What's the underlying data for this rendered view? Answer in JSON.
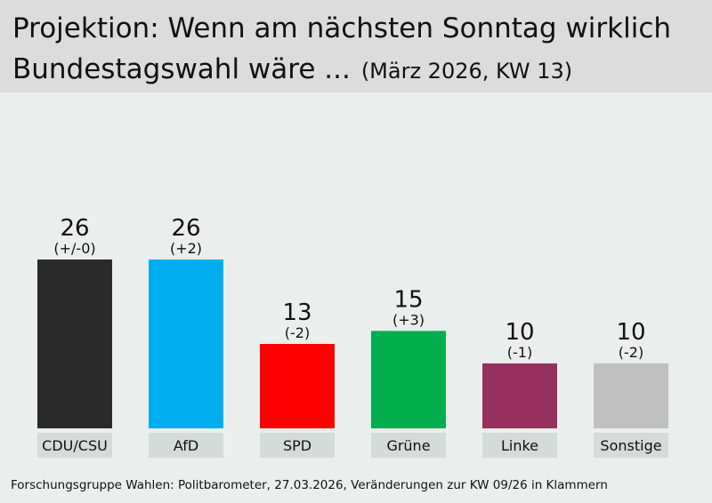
{
  "header": {
    "title_line1": "Projektion: Wenn am nächsten Sonntag wirklich",
    "title_line2": "Bundestagswahl wäre ...",
    "subtitle": "(März 2026, KW 13)"
  },
  "source": "Forschungsgruppe Wahlen: Politbarometer, 27.03.2026, Veränderungen zur KW 09/26 in Klammern",
  "chart_data": {
    "type": "bar",
    "title": "Projektion: Wenn am nächsten Sonntag wirklich Bundestagswahl wäre ...",
    "subtitle": "(März 2026, KW 13)",
    "categories": [
      "CDU/CSU",
      "AfD",
      "SPD",
      "Grüne",
      "Linke",
      "Sonstige"
    ],
    "values": [
      26,
      26,
      13,
      15,
      10,
      10
    ],
    "changes": [
      "(+/-0)",
      "(+2)",
      "(-2)",
      "(+3)",
      "(-1)",
      "(-2)"
    ],
    "colors": [
      "#2a2a2a",
      "#00aeef",
      "#fe0000",
      "#00ae4e",
      "#96315f",
      "#c0c0c0"
    ],
    "label_background": "#d4dbd9",
    "ylim": [
      0,
      26
    ],
    "grid": false,
    "legend": "none"
  }
}
